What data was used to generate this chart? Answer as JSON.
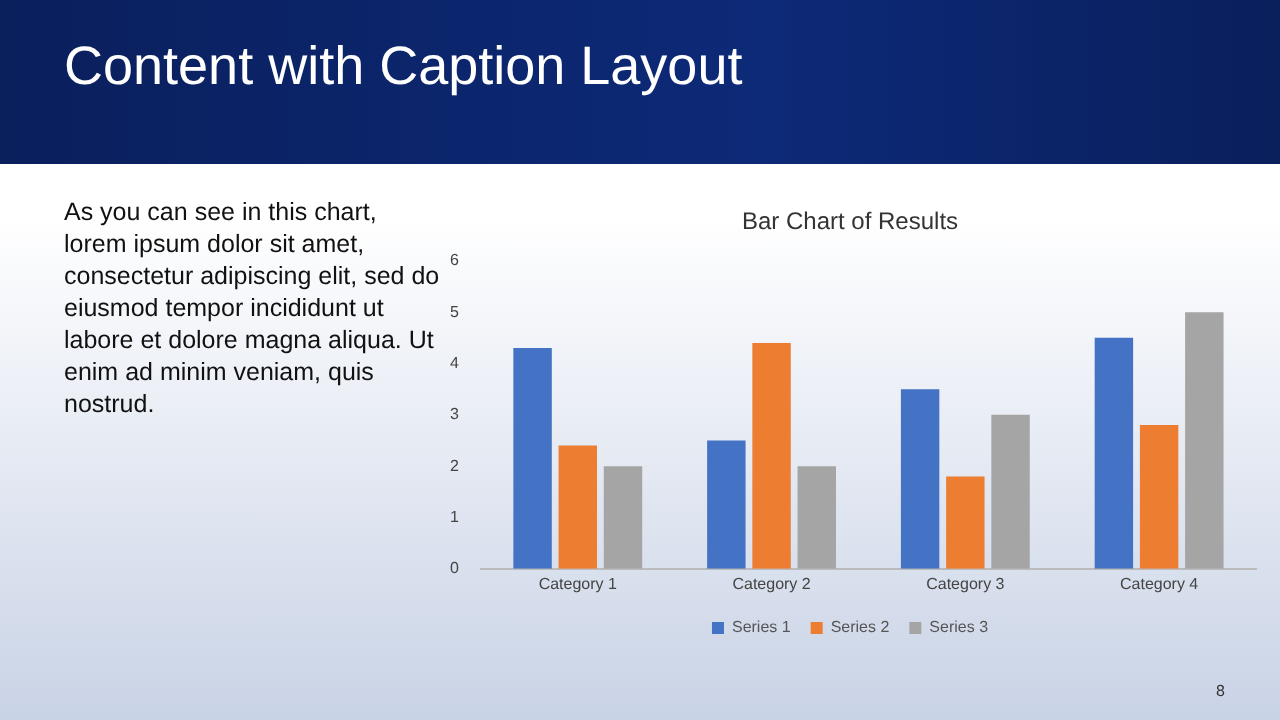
{
  "chart_data": {
    "type": "bar",
    "title": "Bar Chart of Results",
    "categories": [
      "Category 1",
      "Category 2",
      "Category 3",
      "Category 4"
    ],
    "series": [
      {
        "name": "Series 1",
        "color": "#4472c4",
        "values": [
          4.3,
          2.5,
          3.5,
          4.5
        ]
      },
      {
        "name": "Series 2",
        "color": "#ed7d31",
        "values": [
          2.4,
          4.4,
          1.8,
          2.8
        ]
      },
      {
        "name": "Series 3",
        "color": "#a5a5a5",
        "values": [
          2,
          2,
          3,
          5
        ]
      }
    ],
    "ylim": [
      0,
      6
    ],
    "yticks": [
      0,
      1,
      2,
      3,
      4,
      5,
      6
    ],
    "grid": false,
    "legend": "bottom",
    "annotations": [
      "Content with Caption Layout",
      "As you can see in this chart, lorem ipsum dolor sit amet, consectetur adipiscing elit, sed do eiusmod tempor incididunt ut labore et dolore magna aliqua. Ut enim ad minim veniam, quis nostrud.",
      "8"
    ]
  }
}
